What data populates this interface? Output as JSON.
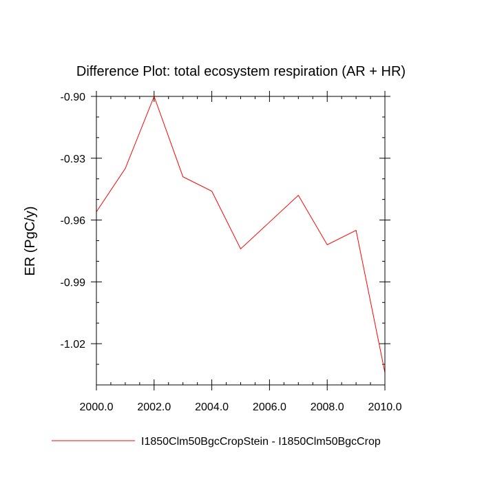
{
  "chart_data": {
    "type": "line",
    "title": "Difference Plot: total ecosystem respiration (AR + HR)",
    "xlabel": "",
    "ylabel": "ER  (PgC/y)",
    "xlim": [
      2000,
      2010
    ],
    "ylim": [
      -1.04,
      -0.9
    ],
    "x_ticks": [
      2000,
      2002,
      2004,
      2006,
      2008,
      2010
    ],
    "x_tick_labels": [
      "2000.0",
      "2002.0",
      "2004.0",
      "2006.0",
      "2008.0",
      "2010.0"
    ],
    "y_ticks": [
      -0.9,
      -0.93,
      -0.96,
      -0.99,
      -1.02
    ],
    "y_tick_labels": [
      "-0.90",
      "-0.93",
      "-0.96",
      "-0.99",
      "-1.02"
    ],
    "grid": false,
    "legend_position": "bottom",
    "series": [
      {
        "name": "I1850Clm50BgcCropStein - I1850Clm50BgcCrop",
        "color": "#ff0000",
        "x": [
          2000,
          2001,
          2002,
          2003,
          2004,
          2005,
          2006,
          2007,
          2008,
          2009,
          2010
        ],
        "y": [
          -0.956,
          -0.935,
          -0.9,
          -0.939,
          -0.946,
          -0.974,
          -0.961,
          -0.948,
          -0.972,
          -0.965,
          -1.034
        ]
      }
    ]
  }
}
